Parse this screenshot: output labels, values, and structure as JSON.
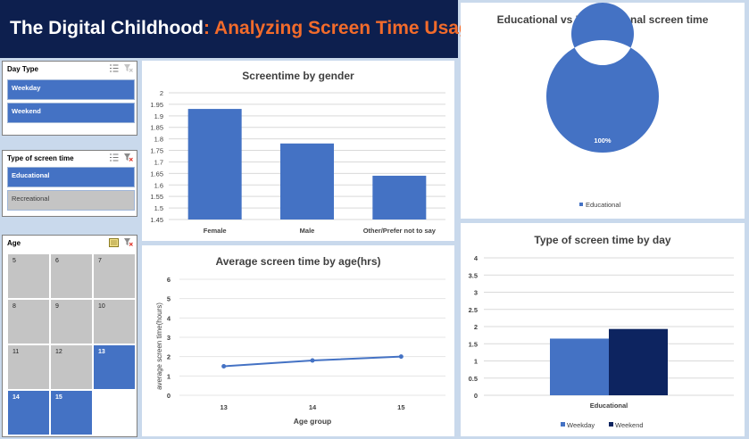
{
  "banner": {
    "title_main": "The Digital Childhood",
    "title_colon": ":",
    "title_accent": " Analyzing Screen Time Usage"
  },
  "slicers": {
    "day_type": {
      "title": "Day Type",
      "items": [
        {
          "label": "Weekday",
          "selected": true
        },
        {
          "label": "Weekend",
          "selected": true
        }
      ]
    },
    "screen_type": {
      "title": "Type of screen time",
      "items": [
        {
          "label": "Educational",
          "selected": true
        },
        {
          "label": "Recreational",
          "selected": false
        }
      ]
    },
    "age": {
      "title": "Age",
      "items": [
        {
          "label": "5",
          "selected": false
        },
        {
          "label": "6",
          "selected": false
        },
        {
          "label": "7",
          "selected": false
        },
        {
          "label": "8",
          "selected": false
        },
        {
          "label": "9",
          "selected": false
        },
        {
          "label": "10",
          "selected": false
        },
        {
          "label": "11",
          "selected": false
        },
        {
          "label": "12",
          "selected": false
        },
        {
          "label": "13",
          "selected": true
        },
        {
          "label": "14",
          "selected": true
        },
        {
          "label": "15",
          "selected": true
        }
      ]
    }
  },
  "chart_data": [
    {
      "type": "bar",
      "title": "Screentime by gender",
      "categories": [
        "Female",
        "Male",
        "Other/Prefer not to say"
      ],
      "values": [
        1.93,
        1.78,
        1.64
      ],
      "ylim": [
        1.45,
        2
      ],
      "yticks": [
        "1.45",
        "1.5",
        "1.55",
        "1.6",
        "1.65",
        "1.7",
        "1.75",
        "1.8",
        "1.85",
        "1.9",
        "1.95",
        "2"
      ],
      "color": "#4472c4",
      "grid": true
    },
    {
      "type": "line",
      "title": "Average screen time by age(hrs)",
      "xlabel": "Age group",
      "ylabel": "average screen time(hours)",
      "categories": [
        "13",
        "14",
        "15"
      ],
      "values": [
        1.5,
        1.8,
        2.0
      ],
      "ylim": [
        0,
        6
      ],
      "yticks": [
        "0",
        "1",
        "2",
        "3",
        "4",
        "5",
        "6"
      ],
      "color": "#4472c4",
      "grid": true
    },
    {
      "type": "pie",
      "title": "Educational vs Reacreational screen time",
      "slices": [
        {
          "label": "Educational",
          "value": 100,
          "data_label": "100%"
        }
      ],
      "legend": [
        "Educational"
      ],
      "legend_position": "bottom",
      "color": "#4472c4"
    },
    {
      "type": "bar",
      "title": "Type of screen time by day",
      "categories": [
        "Educational"
      ],
      "series": [
        {
          "name": "Weekday",
          "values": [
            1.65
          ],
          "color": "#4472c4"
        },
        {
          "name": "Weekend",
          "values": [
            1.93
          ],
          "color": "#0d2460"
        }
      ],
      "ylim": [
        0,
        4
      ],
      "yticks": [
        "0",
        "0.5",
        "1",
        "1.5",
        "2",
        "2.5",
        "3",
        "3.5",
        "4"
      ],
      "legend_position": "bottom",
      "grid": true
    }
  ]
}
